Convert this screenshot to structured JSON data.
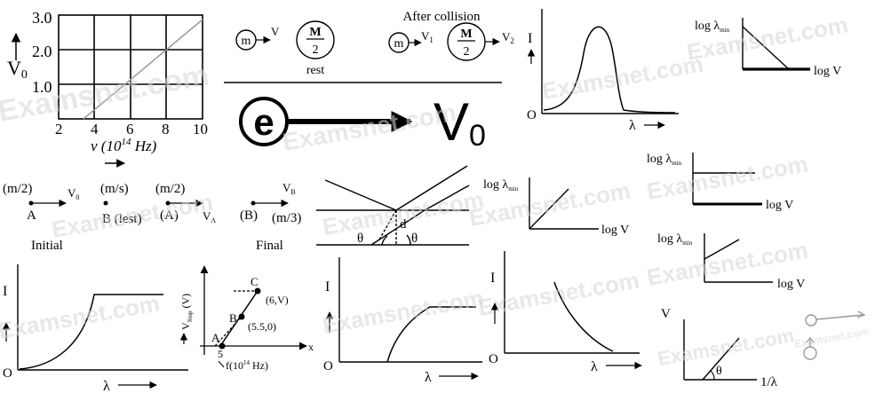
{
  "watermark": "Examsnet.com",
  "watermark_color": "#d6d6d6",
  "topleft_graph": {
    "ylabel": "V",
    "ylabel_sub": "0",
    "yticks": [
      "3.0",
      "2.0",
      "1.0"
    ],
    "xticks": [
      "2",
      "4",
      "6",
      "8",
      "10"
    ],
    "xlabel": "ν (10",
    "xlabel_sup": "14",
    "xlabel_tail": " Hz)"
  },
  "collision": {
    "m_label": "m",
    "v_label": "V",
    "M_num": "M",
    "M_den": "2",
    "rest_label": "rest",
    "after_title": "After collision",
    "v1_label": "V",
    "v1_sub": "1",
    "v2_label": "V",
    "v2_sub": "2"
  },
  "electron": {
    "symbol": "e",
    "v_label": "V",
    "v_sub": "0"
  },
  "bell_graph": {
    "ylabel": "I",
    "origin": "O",
    "xlabel": "λ"
  },
  "log_graphs": [
    {
      "ylabel": "log λ",
      "ylabel_sub": "min",
      "xlabel": "log V"
    },
    {
      "ylabel": "log λ",
      "ylabel_sub": "min",
      "xlabel": "log V"
    },
    {
      "ylabel": "log λ",
      "ylabel_sub": "min",
      "xlabel": "log V"
    },
    {
      "ylabel": "log λ",
      "ylabel_sub": "min",
      "xlabel": "log V"
    }
  ],
  "masses": {
    "a_mass": "(m/2)",
    "a_vel": "V",
    "a_vel_sub": "0",
    "a_name": "A",
    "b_mass": "(m/s)",
    "b_name": "B (lest)",
    "c_mass": "(m/2)",
    "c_name": "(A)",
    "c_vel": "V",
    "c_vel_sub": "A",
    "d_name": "(B)",
    "d_mass": "(m/3)",
    "d_vel": "V",
    "d_vel_sub": "B",
    "initial_label": "Initial",
    "final_label": "Final"
  },
  "diffraction": {
    "d_label": "d",
    "theta1": "θ",
    "theta2": "θ"
  },
  "curve1": {
    "ylabel": "I",
    "origin": "O",
    "xlabel": "λ"
  },
  "stop_graph": {
    "ylabel": "V",
    "ylabel_sub": "Stop",
    "ylabel_unit": " (V)",
    "xlabel": "f(10",
    "xlabel_sup": "14",
    "xlabel_tail": " Hz)",
    "x_axis": "x",
    "point_a": "A",
    "point_b": "B",
    "point_c": "C",
    "coord_b": "(5.5,0)",
    "coord_c": "(6,V)",
    "tick_5": "5"
  },
  "curve2": {
    "ylabel": "I",
    "origin": "O",
    "xlabel": "λ"
  },
  "curve3": {
    "ylabel": "I",
    "origin": "O",
    "xlabel": "λ"
  },
  "v_graph": {
    "ylabel": "V",
    "xlabel": "1/λ",
    "angle": "θ"
  }
}
